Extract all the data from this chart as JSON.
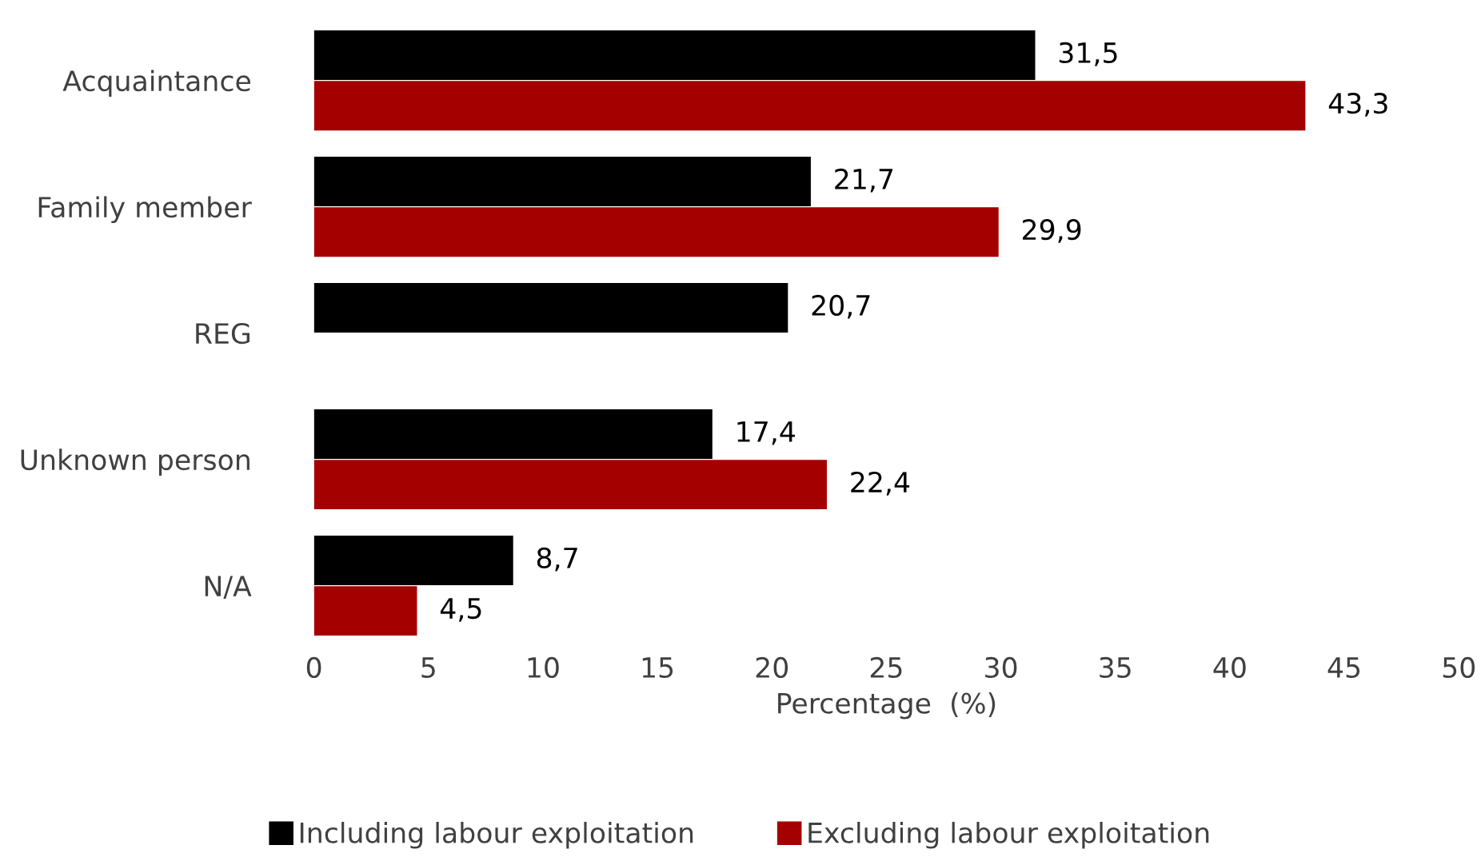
{
  "chart_data": {
    "type": "bar",
    "orientation": "horizontal",
    "categories": [
      "Acquaintance",
      "Family member",
      "REG",
      "Unknown person",
      "N/A"
    ],
    "series": [
      {
        "name": "Including labour exploitation",
        "color": "#000000",
        "values": [
          31.5,
          21.7,
          20.7,
          17.4,
          8.7
        ],
        "value_labels": [
          "31,5",
          "21,7",
          "20,7",
          "17,4",
          "8,7"
        ]
      },
      {
        "name": "Excluding labour exploitation",
        "color": "#a50000",
        "values": [
          43.3,
          29.9,
          null,
          22.4,
          4.5
        ],
        "value_labels": [
          "43,3",
          "29,9",
          null,
          "22,4",
          "4,5"
        ]
      }
    ],
    "xlabel": "Percentage  (%)",
    "xlim": [
      0,
      50
    ],
    "xticks": [
      0,
      5,
      10,
      15,
      20,
      25,
      30,
      35,
      40,
      45,
      50
    ],
    "grid": false,
    "legend": "bottom"
  }
}
